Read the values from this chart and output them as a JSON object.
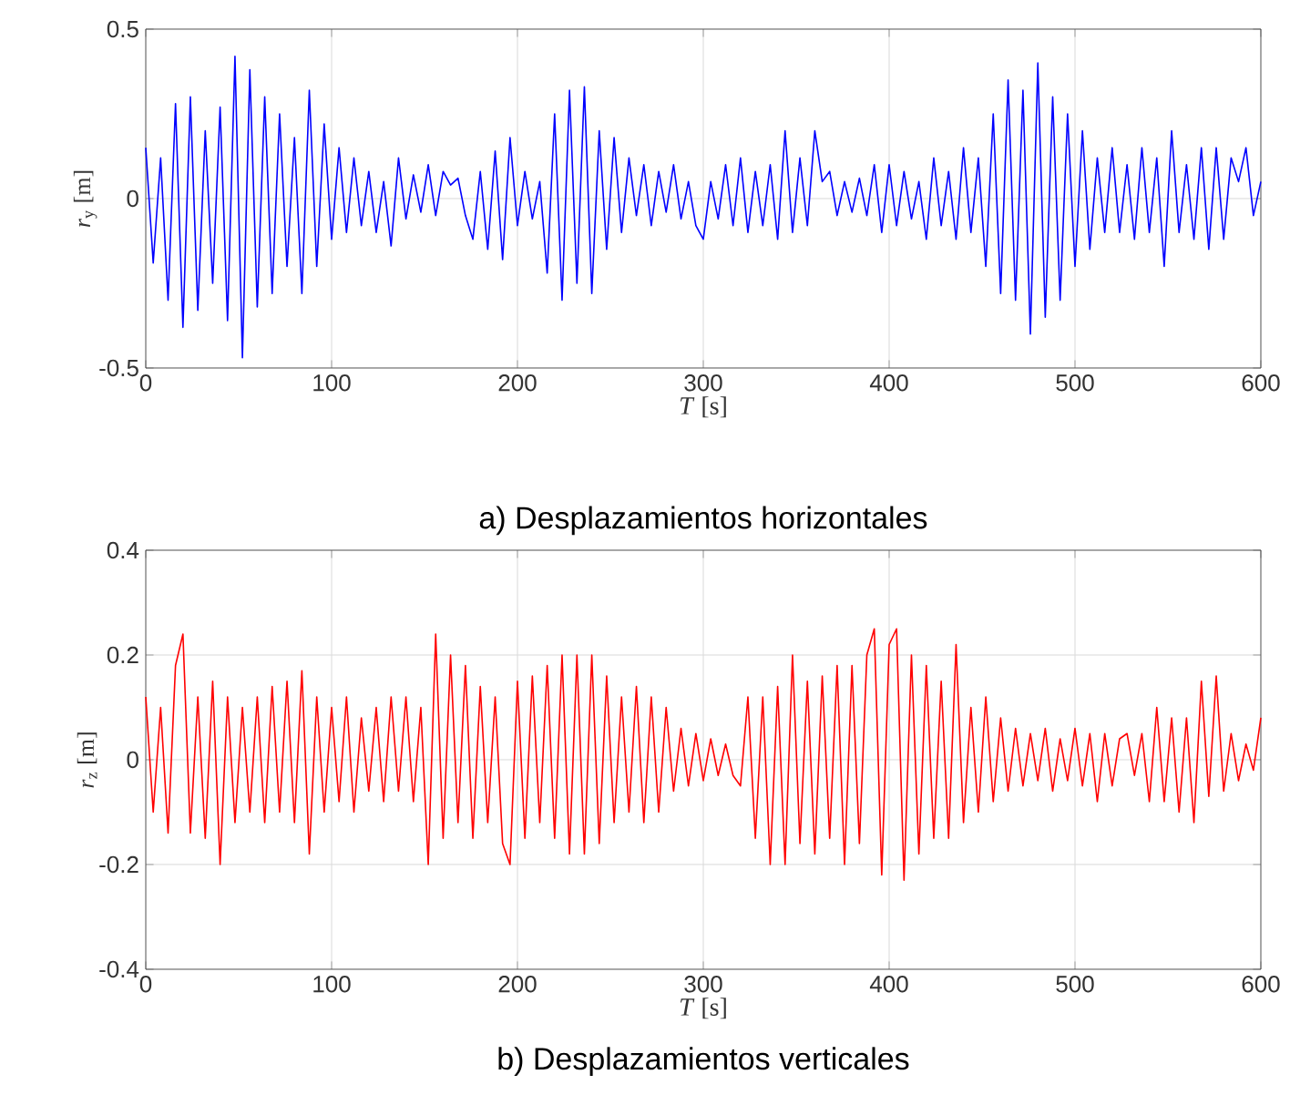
{
  "chart_data": [
    {
      "type": "line",
      "xlabel": "*T* [s]",
      "ylabel": "*r*$_{y}$ [m]",
      "xlim": [
        0,
        600
      ],
      "ylim": [
        -0.5,
        0.5
      ],
      "xticks": [
        0,
        100,
        200,
        300,
        400,
        500,
        600
      ],
      "yticks": [
        -0.5,
        0,
        0.5
      ],
      "grid": true,
      "annotations": [
        "a) Desplazamientos horizontales"
      ],
      "x": [
        0,
        4,
        8,
        12,
        16,
        20,
        24,
        28,
        32,
        36,
        40,
        44,
        48,
        52,
        56,
        60,
        64,
        68,
        72,
        76,
        80,
        84,
        88,
        92,
        96,
        100,
        104,
        108,
        112,
        116,
        120,
        124,
        128,
        132,
        136,
        140,
        144,
        148,
        152,
        156,
        160,
        164,
        168,
        172,
        176,
        180,
        184,
        188,
        192,
        196,
        200,
        204,
        208,
        212,
        216,
        220,
        224,
        228,
        232,
        236,
        240,
        244,
        248,
        252,
        256,
        260,
        264,
        268,
        272,
        276,
        280,
        284,
        288,
        292,
        296,
        300,
        304,
        308,
        312,
        316,
        320,
        324,
        328,
        332,
        336,
        340,
        344,
        348,
        352,
        356,
        360,
        364,
        368,
        372,
        376,
        380,
        384,
        388,
        392,
        396,
        400,
        404,
        408,
        412,
        416,
        420,
        424,
        428,
        432,
        436,
        440,
        444,
        448,
        452,
        456,
        460,
        464,
        468,
        472,
        476,
        480,
        484,
        488,
        492,
        496,
        500,
        504,
        508,
        512,
        516,
        520,
        524,
        528,
        532,
        536,
        540,
        544,
        548,
        552,
        556,
        560,
        564,
        568,
        572,
        576,
        580,
        584,
        588,
        592,
        596,
        600
      ],
      "series": [
        {
          "color": "#0000ff",
          "values": [
            0.15,
            -0.19,
            0.12,
            -0.3,
            0.28,
            -0.38,
            0.3,
            -0.33,
            0.2,
            -0.25,
            0.27,
            -0.36,
            0.42,
            -0.47,
            0.38,
            -0.32,
            0.3,
            -0.28,
            0.25,
            -0.2,
            0.18,
            -0.28,
            0.32,
            -0.2,
            0.22,
            -0.12,
            0.15,
            -0.1,
            0.12,
            -0.08,
            0.08,
            -0.1,
            0.05,
            -0.14,
            0.12,
            -0.06,
            0.07,
            -0.04,
            0.1,
            -0.05,
            0.08,
            0.04,
            0.06,
            -0.05,
            -0.12,
            0.08,
            -0.15,
            0.14,
            -0.18,
            0.18,
            -0.08,
            0.08,
            -0.06,
            0.05,
            -0.22,
            0.25,
            -0.3,
            0.32,
            -0.25,
            0.33,
            -0.28,
            0.2,
            -0.15,
            0.18,
            -0.1,
            0.12,
            -0.05,
            0.1,
            -0.08,
            0.08,
            -0.04,
            0.1,
            -0.06,
            0.05,
            -0.08,
            -0.12,
            0.05,
            -0.06,
            0.1,
            -0.08,
            0.12,
            -0.1,
            0.08,
            -0.08,
            0.1,
            -0.12,
            0.2,
            -0.1,
            0.12,
            -0.08,
            0.2,
            0.05,
            0.08,
            -0.05,
            0.05,
            -0.04,
            0.06,
            -0.05,
            0.1,
            -0.1,
            0.1,
            -0.08,
            0.08,
            -0.06,
            0.05,
            -0.12,
            0.12,
            -0.08,
            0.08,
            -0.12,
            0.15,
            -0.1,
            0.12,
            -0.2,
            0.25,
            -0.28,
            0.35,
            -0.3,
            0.32,
            -0.4,
            0.4,
            -0.35,
            0.3,
            -0.3,
            0.25,
            -0.2,
            0.2,
            -0.15,
            0.12,
            -0.1,
            0.15,
            -0.1,
            0.1,
            -0.12,
            0.15,
            -0.1,
            0.12,
            -0.2,
            0.2,
            -0.1,
            0.1,
            -0.12,
            0.15,
            -0.15,
            0.15,
            -0.12,
            0.12,
            0.05,
            0.15,
            -0.05,
            0.05
          ]
        }
      ]
    },
    {
      "type": "line",
      "xlabel": "*T* [s]",
      "ylabel": "*r*$_{z}$ [m]",
      "xlim": [
        0,
        600
      ],
      "ylim": [
        -0.4,
        0.4
      ],
      "xticks": [
        0,
        100,
        200,
        300,
        400,
        500,
        600
      ],
      "yticks": [
        -0.4,
        -0.2,
        0,
        0.2,
        0.4
      ],
      "grid": true,
      "annotations": [
        "b) Desplazamientos verticales"
      ],
      "x": [
        0,
        4,
        8,
        12,
        16,
        20,
        24,
        28,
        32,
        36,
        40,
        44,
        48,
        52,
        56,
        60,
        64,
        68,
        72,
        76,
        80,
        84,
        88,
        92,
        96,
        100,
        104,
        108,
        112,
        116,
        120,
        124,
        128,
        132,
        136,
        140,
        144,
        148,
        152,
        156,
        160,
        164,
        168,
        172,
        176,
        180,
        184,
        188,
        192,
        196,
        200,
        204,
        208,
        212,
        216,
        220,
        224,
        228,
        232,
        236,
        240,
        244,
        248,
        252,
        256,
        260,
        264,
        268,
        272,
        276,
        280,
        284,
        288,
        292,
        296,
        300,
        304,
        308,
        312,
        316,
        320,
        324,
        328,
        332,
        336,
        340,
        344,
        348,
        352,
        356,
        360,
        364,
        368,
        372,
        376,
        380,
        384,
        388,
        392,
        396,
        400,
        404,
        408,
        412,
        416,
        420,
        424,
        428,
        432,
        436,
        440,
        444,
        448,
        452,
        456,
        460,
        464,
        468,
        472,
        476,
        480,
        484,
        488,
        492,
        496,
        500,
        504,
        508,
        512,
        516,
        520,
        524,
        528,
        532,
        536,
        540,
        544,
        548,
        552,
        556,
        560,
        564,
        568,
        572,
        576,
        580,
        584,
        588,
        592,
        596,
        600
      ],
      "series": [
        {
          "color": "#ff0000",
          "values": [
            0.12,
            -0.1,
            0.1,
            -0.14,
            0.18,
            0.24,
            -0.14,
            0.12,
            -0.15,
            0.15,
            -0.2,
            0.12,
            -0.12,
            0.1,
            -0.1,
            0.12,
            -0.12,
            0.14,
            -0.1,
            0.15,
            -0.12,
            0.17,
            -0.18,
            0.12,
            -0.1,
            0.1,
            -0.08,
            0.12,
            -0.1,
            0.08,
            -0.06,
            0.1,
            -0.08,
            0.12,
            -0.06,
            0.12,
            -0.08,
            0.1,
            -0.2,
            0.24,
            -0.15,
            0.2,
            -0.12,
            0.18,
            -0.15,
            0.14,
            -0.12,
            0.12,
            -0.16,
            -0.2,
            0.15,
            -0.15,
            0.16,
            -0.12,
            0.18,
            -0.15,
            0.2,
            -0.18,
            0.2,
            -0.18,
            0.2,
            -0.16,
            0.16,
            -0.12,
            0.12,
            -0.1,
            0.14,
            -0.12,
            0.12,
            -0.1,
            0.1,
            -0.06,
            0.06,
            -0.05,
            0.05,
            -0.04,
            0.04,
            -0.03,
            0.03,
            -0.03,
            -0.05,
            0.12,
            -0.15,
            0.12,
            -0.2,
            0.14,
            -0.2,
            0.2,
            -0.16,
            0.15,
            -0.18,
            0.16,
            -0.15,
            0.18,
            -0.2,
            0.18,
            -0.16,
            0.2,
            0.25,
            -0.22,
            0.22,
            0.25,
            -0.23,
            0.2,
            -0.18,
            0.18,
            -0.15,
            0.15,
            -0.15,
            0.22,
            -0.12,
            0.1,
            -0.1,
            0.12,
            -0.08,
            0.08,
            -0.06,
            0.06,
            -0.05,
            0.05,
            -0.04,
            0.06,
            -0.06,
            0.04,
            -0.04,
            0.06,
            -0.05,
            0.05,
            -0.08,
            0.05,
            -0.05,
            0.04,
            0.05,
            -0.03,
            0.05,
            -0.08,
            0.1,
            -0.08,
            0.08,
            -0.1,
            0.08,
            -0.12,
            0.15,
            -0.07,
            0.16,
            -0.06,
            0.05,
            -0.04,
            0.03,
            -0.02,
            0.08
          ]
        }
      ]
    }
  ]
}
